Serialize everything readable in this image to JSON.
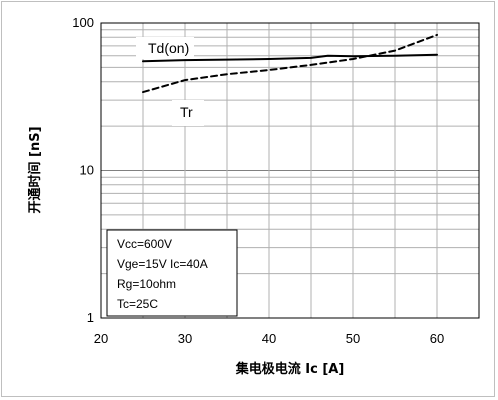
{
  "chart_data": {
    "type": "line",
    "y_scale": "log",
    "xlim": [
      20,
      65
    ],
    "ylim": [
      1,
      100
    ],
    "x_ticks": [
      "20",
      "30",
      "40",
      "50",
      "60"
    ],
    "y_ticks": [
      "1",
      "10",
      "100"
    ],
    "xlabel": "集电极电流 Ic [A]",
    "ylabel": "开通时间 [nS]",
    "grid": true,
    "series": [
      {
        "name": "Td(on)",
        "style": "solid",
        "x": [
          25,
          30,
          35,
          40,
          45,
          47,
          50,
          55,
          60
        ],
        "values": [
          55,
          56,
          56.5,
          57,
          58,
          60,
          59.5,
          60,
          61
        ]
      },
      {
        "name": "Tr",
        "style": "dashed",
        "x": [
          25,
          30,
          35,
          40,
          45,
          50,
          55,
          60
        ],
        "values": [
          34,
          41,
          45,
          48,
          52,
          57,
          65,
          83
        ]
      }
    ],
    "annotations": [
      "Vcc=600V",
      "Vge=15V Ic=40A",
      "Rg=10ohm",
      "Tc=25C"
    ]
  }
}
